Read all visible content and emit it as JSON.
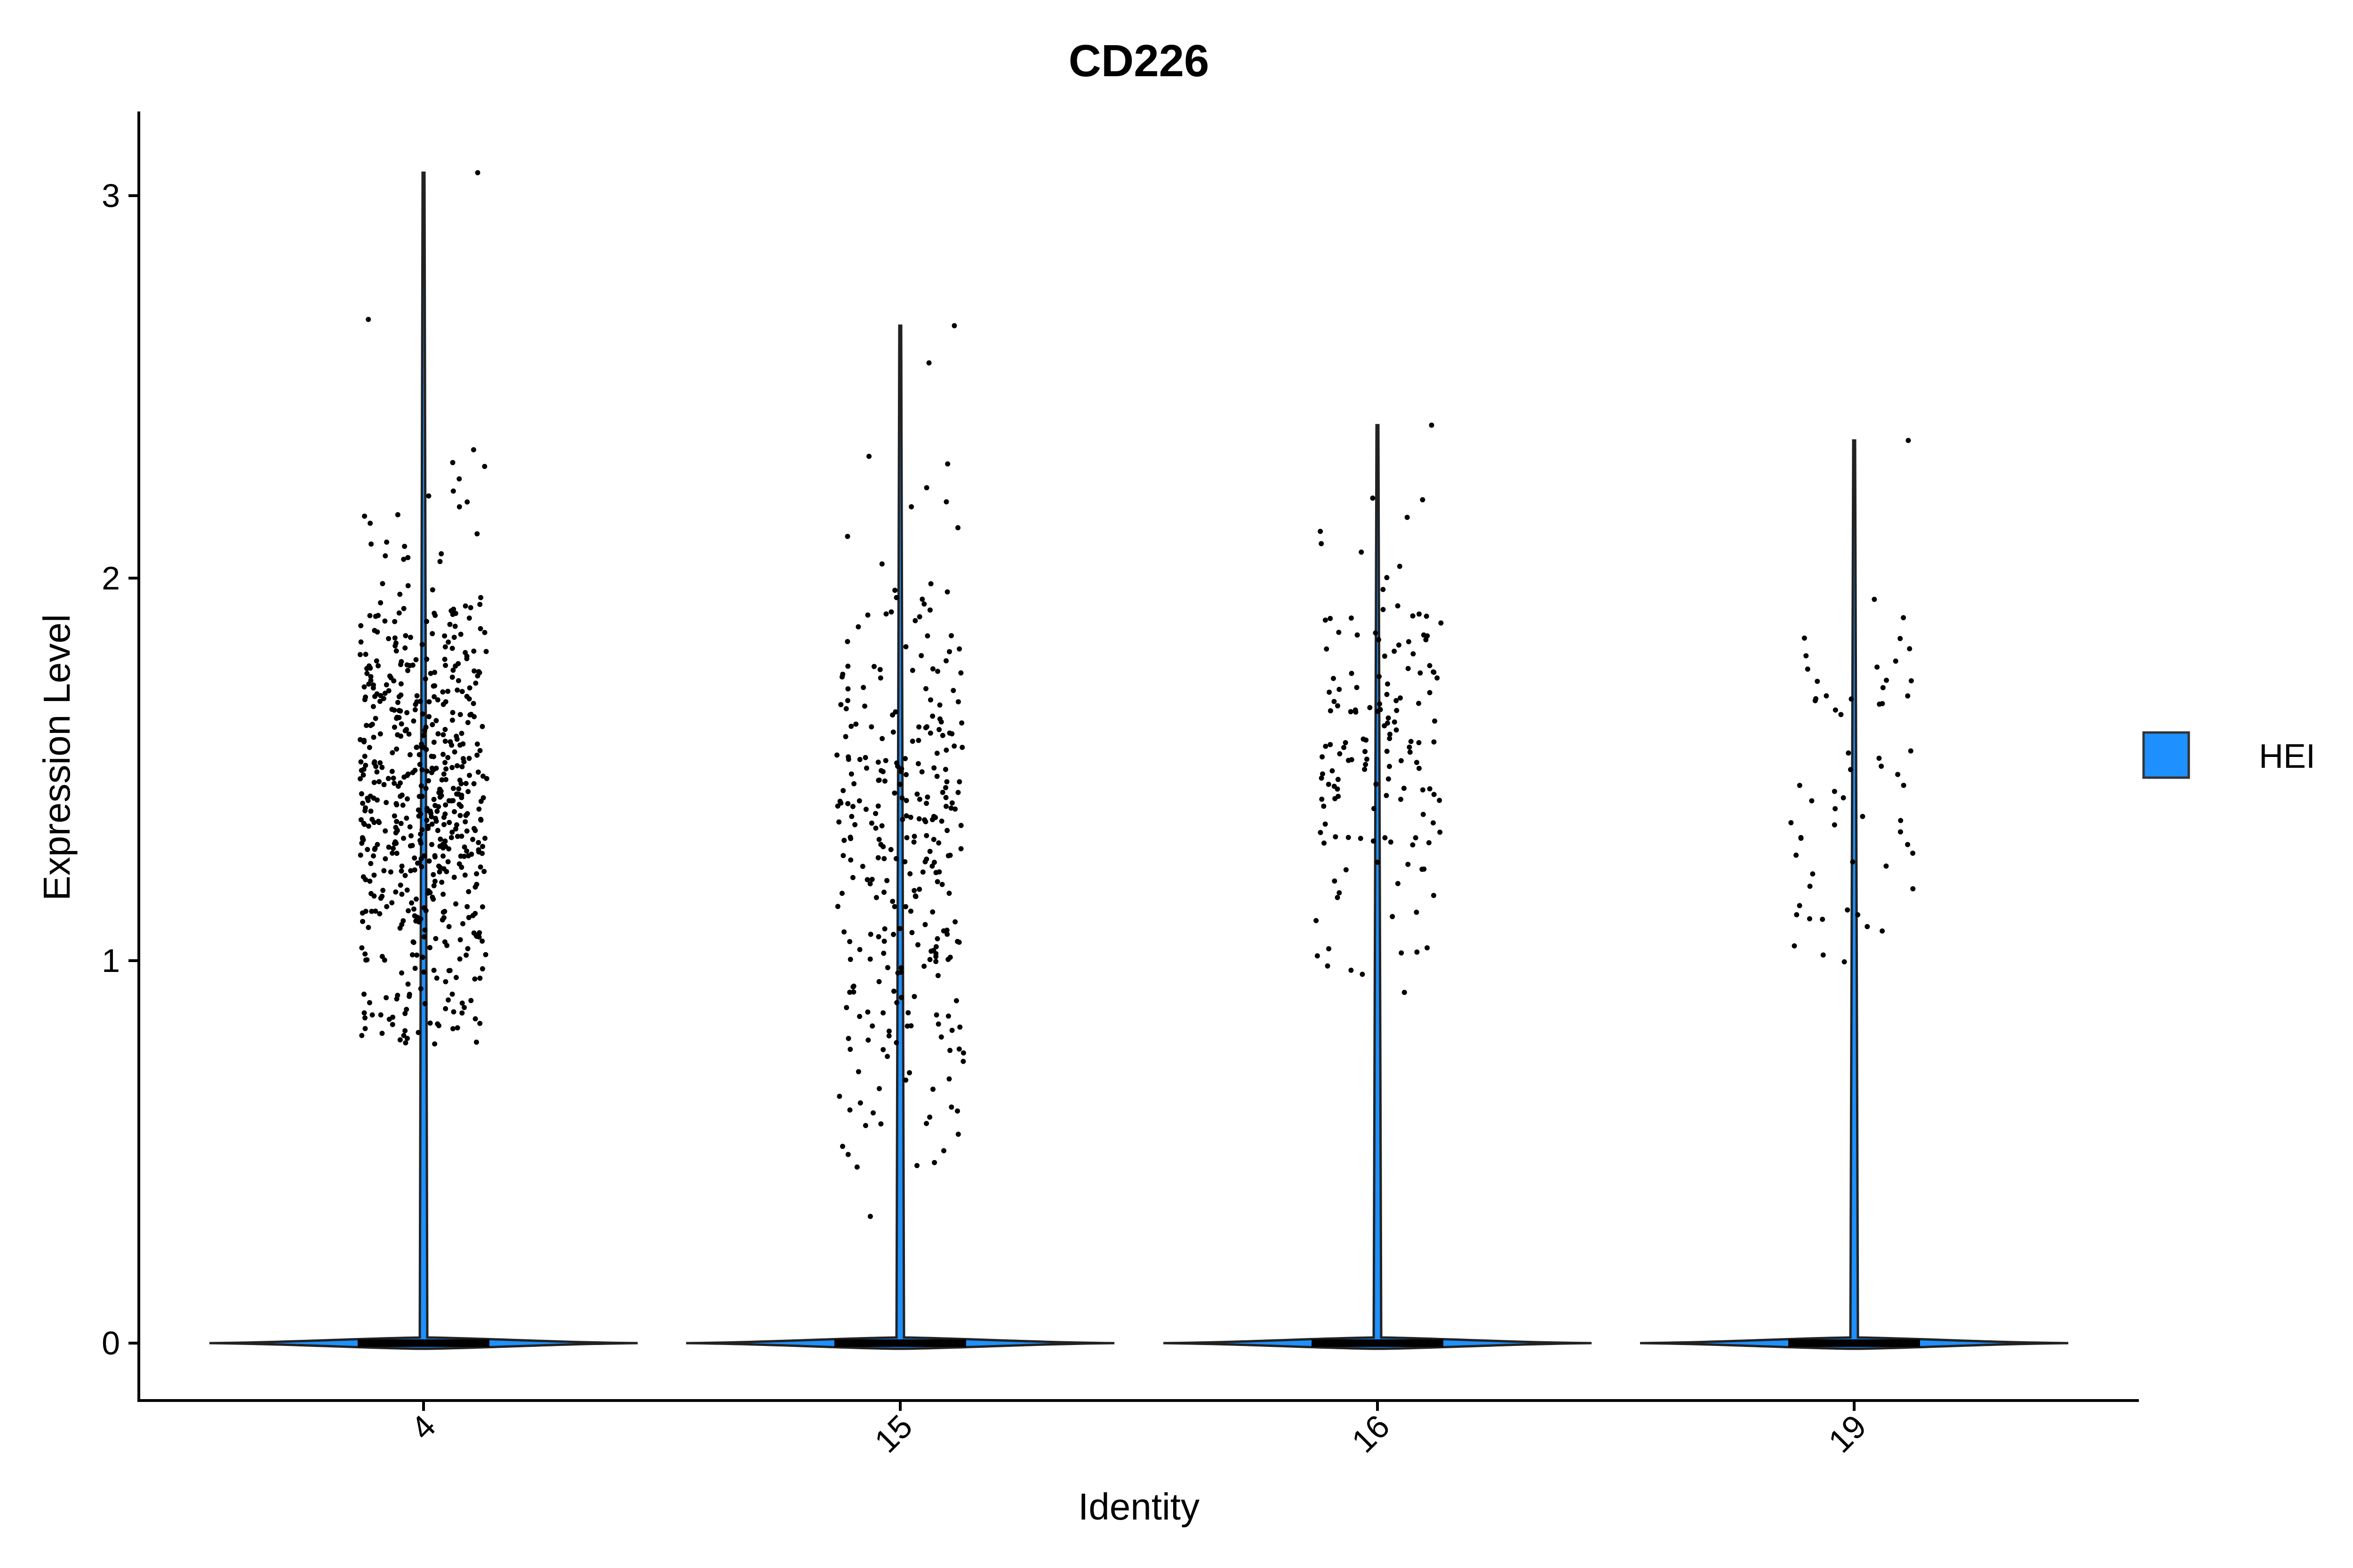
{
  "chart_data": {
    "type": "violin",
    "title": "CD226",
    "xlabel": "Identity",
    "ylabel": "Expression Level",
    "categories": [
      "4",
      "15",
      "16",
      "19"
    ],
    "ylim": [
      -0.15,
      3.22
    ],
    "yticks": [
      0,
      1,
      2,
      3
    ],
    "ytick_labels": [
      "0",
      "1",
      "2",
      "3"
    ],
    "x_tick_rotation": 45,
    "legend": {
      "position": "right",
      "entries": [
        {
          "name": "HEI",
          "color": "#1E90FF"
        }
      ]
    },
    "fill_color": "#1E90FF",
    "groups": [
      {
        "identity": "4",
        "max": 3.06,
        "zero_fraction_dominant": true,
        "nonzero_range": [
          0.78,
          3.06
        ],
        "nonzero_center": 1.42,
        "nonzero_sd": 0.33,
        "points_shown": 600
      },
      {
        "identity": "15",
        "max": 2.66,
        "zero_fraction_dominant": true,
        "nonzero_range": [
          0.31,
          2.66
        ],
        "nonzero_center": 1.3,
        "nonzero_sd": 0.4,
        "points_shown": 300
      },
      {
        "identity": "16",
        "max": 2.4,
        "zero_fraction_dominant": true,
        "nonzero_range": [
          0.91,
          2.4
        ],
        "nonzero_center": 1.55,
        "nonzero_sd": 0.28,
        "points_shown": 150
      },
      {
        "identity": "19",
        "max": 2.36,
        "zero_fraction_dominant": true,
        "nonzero_range": [
          0.95,
          2.36
        ],
        "nonzero_center": 1.45,
        "nonzero_sd": 0.28,
        "points_shown": 60
      }
    ],
    "grid": false
  }
}
